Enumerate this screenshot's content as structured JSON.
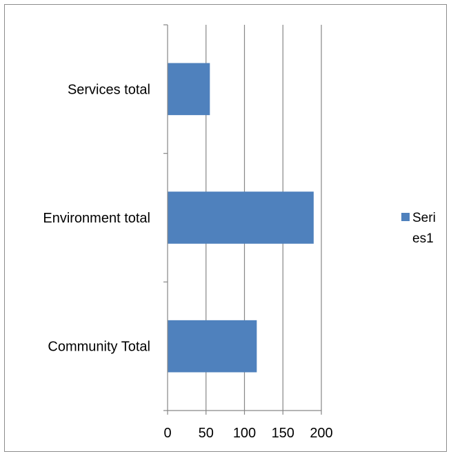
{
  "chart_data": {
    "type": "bar",
    "orientation": "horizontal",
    "categories": [
      "Community Total",
      "Environment total",
      "Services total"
    ],
    "series": [
      {
        "name": "Series1",
        "values": [
          116,
          190,
          55
        ],
        "color": "#4f81bd"
      }
    ],
    "x_ticks": [
      "0",
      "50",
      "100",
      "150",
      "200"
    ],
    "xlim": [
      0,
      200
    ],
    "grid": "vertical major gridlines",
    "legend": {
      "placement": "right",
      "line1": "Seri",
      "line2": "es1"
    }
  }
}
